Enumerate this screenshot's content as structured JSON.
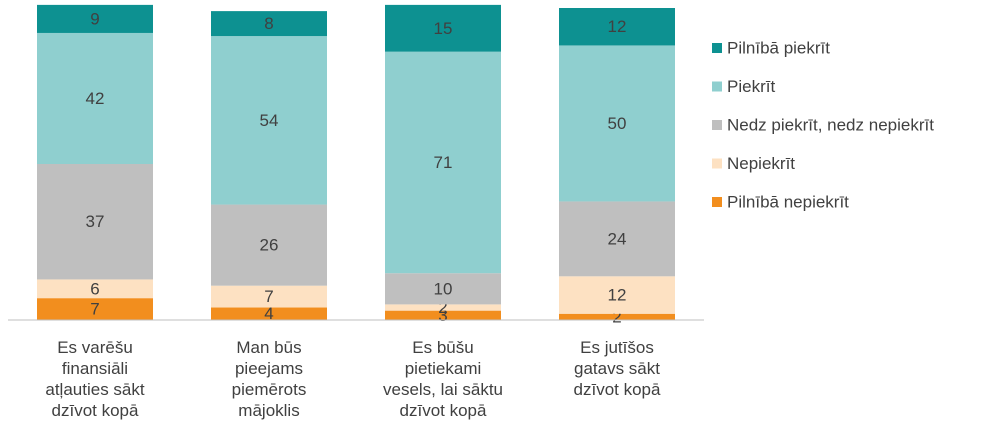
{
  "chart_data": {
    "type": "stacked_bar",
    "categories": [
      "Es varēšu\nfinansiāli\natļauties sākt\ndzīvot kopā",
      "Man būs\npieejams\npiemērots\nmājoklis",
      "Es būšu\npietiekami\nvesels, lai sāktu\ndzīvot kopā",
      "Es jutīšos\ngatavs sākt\ndzīvot kopā"
    ],
    "series": [
      {
        "name": "Pilnībā nepiekrīt",
        "color": "#f28e1e",
        "values": [
          7,
          4,
          3,
          2
        ]
      },
      {
        "name": "Nepiekrīt",
        "color": "#fde1c2",
        "values": [
          6,
          7,
          2,
          12
        ]
      },
      {
        "name": "Nedz piekrīt, nedz nepiekrīt",
        "color": "#bfbfbf",
        "values": [
          37,
          26,
          10,
          24
        ]
      },
      {
        "name": "Piekrīt",
        "color": "#8fcfcf",
        "values": [
          42,
          54,
          71,
          50
        ]
      },
      {
        "name": "Pilnībā piekrīt",
        "color": "#0d9191",
        "values": [
          9,
          8,
          15,
          12
        ]
      }
    ],
    "ylim": [
      0,
      100
    ],
    "legend": "right"
  }
}
